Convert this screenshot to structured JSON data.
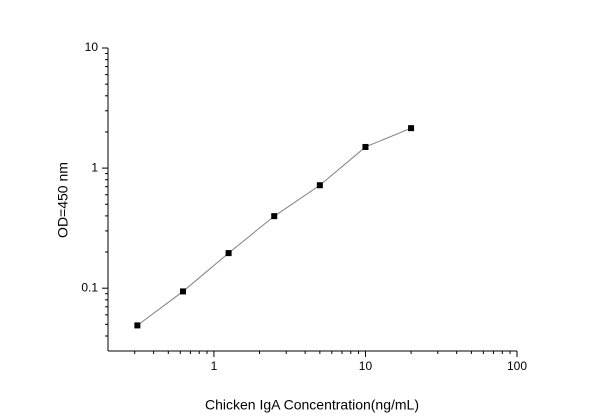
{
  "chart_data": {
    "type": "line",
    "x_label": "Chicken IgA Concentration(ng/mL)",
    "y_label": "OD=450 nm",
    "x": [
      0.3125,
      0.625,
      1.25,
      2.5,
      5,
      10,
      20
    ],
    "series": [
      {
        "color": "#000000",
        "line_color": "#808080",
        "values": [
          0.049,
          0.094,
          0.196,
          0.398,
          0.72,
          1.5,
          2.15
        ]
      }
    ],
    "xlim": [
      0.2,
      100
    ],
    "ylim": [
      0.03,
      10
    ],
    "xticks": [
      1,
      10,
      100
    ],
    "yticks": [
      0.1,
      1,
      10
    ],
    "x_log": true,
    "y_log": true
  }
}
